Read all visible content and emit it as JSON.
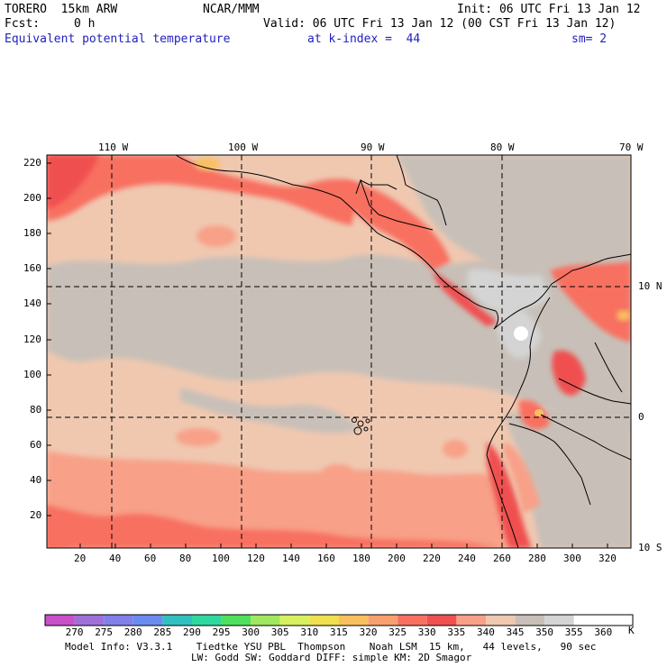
{
  "header": {
    "model": "TORERO  15km ARW",
    "org": "NCAR/MMM",
    "init": "Init: 06 UTC Fri 13 Jan 12",
    "fcst_label": "Fcst:",
    "fcst_value": "0 h",
    "valid": "Valid: 06 UTC Fri 13 Jan 12 (00 CST Fri 13 Jan 12)",
    "field": "Equivalent potential temperature",
    "kindex": "at k-index =  44",
    "smoothing": "sm= 2"
  },
  "map": {
    "lon_labels": [
      "110 W",
      "100 W",
      "90 W",
      "80 W",
      "70 W"
    ],
    "lat_labels": [
      "10 N",
      "0",
      "10 S"
    ],
    "y_ticks": [
      "220",
      "200",
      "180",
      "160",
      "140",
      "120",
      "100",
      "80",
      "60",
      "40",
      "20"
    ],
    "x_ticks": [
      "20",
      "40",
      "60",
      "80",
      "100",
      "120",
      "140",
      "160",
      "180",
      "200",
      "220",
      "240",
      "260",
      "280",
      "300",
      "320"
    ]
  },
  "colorbar": {
    "labels": [
      "270",
      "275",
      "280",
      "285",
      "290",
      "295",
      "300",
      "305",
      "310",
      "315",
      "320",
      "325",
      "330",
      "335",
      "340",
      "345",
      "350",
      "355",
      "360"
    ],
    "unit": "K",
    "colors": [
      "#c850c8",
      "#a070d8",
      "#8080e8",
      "#6a8cf0",
      "#30c0c0",
      "#30d8a0",
      "#50e060",
      "#a0e860",
      "#d8f060",
      "#f0e050",
      "#f8c060",
      "#f8a070",
      "#f87060",
      "#f05050",
      "#f8a088",
      "#f0c8b0",
      "#c8c0b8",
      "#d4d4d4",
      "#ffffff"
    ]
  },
  "footer": {
    "line1": "Model Info: V3.3.1    Tiedtke YSU PBL  Thompson    Noah LSM  15 km,   44 levels,   90 sec",
    "line2": "LW: Godd SW: Goddard DIFF: simple KM: 2D Smagor"
  }
}
